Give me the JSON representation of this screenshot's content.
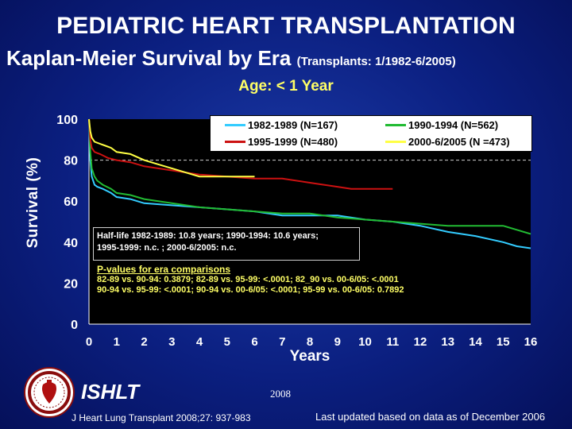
{
  "header": {
    "title_line1": "PEDIATRIC HEART TRANSPLANTATION",
    "title_line2": "Kaplan-Meier Survival by Era",
    "title_line2_small": "(Transplants: 1/1982-6/2005)",
    "subtitle": "Age: < 1 Year"
  },
  "colors": {
    "background": "#0b1f80",
    "plot_bg": "#000000",
    "series_1982_1989": "#33ccff",
    "series_1990_1994": "#22bb33",
    "series_1995_1999": "#cc1111",
    "series_2000_2005": "#ffff44",
    "pvalue_text": "#ffff66"
  },
  "chart_data": {
    "type": "line",
    "xlabel": "Years",
    "ylabel": "Survival (%)",
    "xlim": [
      0,
      16
    ],
    "ylim": [
      0,
      100
    ],
    "xticks": [
      "0",
      "1",
      "2",
      "3",
      "4",
      "5",
      "6",
      "7",
      "8",
      "9",
      "10",
      "11",
      "12",
      "13",
      "14",
      "15",
      "16"
    ],
    "yticks": [
      "0",
      "20",
      "40",
      "60",
      "80",
      "100"
    ],
    "reference_line": 80,
    "legend_position": "top-right",
    "series": [
      {
        "name": "1982-1989 (N=167)",
        "color": "#33ccff",
        "x": [
          0,
          0.05,
          0.1,
          0.2,
          0.3,
          0.5,
          0.8,
          1,
          1.5,
          2,
          3,
          4,
          5,
          6,
          7,
          8,
          9,
          10,
          11,
          12,
          13,
          14,
          15,
          15.5,
          16
        ],
        "y": [
          100,
          80,
          72,
          68,
          67,
          66,
          64,
          62,
          61,
          59,
          58,
          57,
          56,
          55,
          53,
          53,
          53,
          51,
          50,
          48,
          45,
          43,
          40,
          38,
          37
        ]
      },
      {
        "name": "1990-1994 (N=562)",
        "color": "#22bb33",
        "x": [
          0,
          0.05,
          0.1,
          0.2,
          0.3,
          0.5,
          0.8,
          1,
          1.5,
          2,
          3,
          4,
          5,
          6,
          7,
          8,
          9,
          10,
          11,
          12,
          13,
          14,
          15,
          15.5,
          16
        ],
        "y": [
          100,
          84,
          76,
          72,
          70,
          68,
          66,
          64,
          63,
          61,
          59,
          57,
          56,
          55,
          54,
          54,
          52,
          51,
          50,
          49,
          48,
          48,
          48,
          46,
          44
        ]
      },
      {
        "name": "1995-1999 (N=480)",
        "color": "#cc1111",
        "x": [
          0,
          0.05,
          0.1,
          0.2,
          0.4,
          0.7,
          1,
          1.5,
          2,
          3,
          4,
          5,
          6,
          7,
          8,
          9,
          9.5,
          10,
          10.5,
          11
        ],
        "y": [
          100,
          90,
          86,
          84,
          83,
          81,
          80,
          79,
          77,
          75,
          73,
          72,
          71,
          71,
          69,
          67,
          66,
          66,
          66,
          66
        ]
      },
      {
        "name": "2000-6/2005 (N =473)",
        "color": "#ffff44",
        "x": [
          0,
          0.05,
          0.1,
          0.2,
          0.4,
          0.6,
          0.8,
          1,
          1.5,
          2,
          2.5,
          3,
          3.5,
          4,
          5,
          6
        ],
        "y": [
          100,
          94,
          91,
          89,
          88,
          87,
          86,
          84,
          83,
          80,
          78,
          76,
          74,
          72,
          72,
          72
        ]
      }
    ]
  },
  "annotations": {
    "halflife_line1": "Half-life 1982-1989: 10.8 years; 1990-1994: 10.6 years;",
    "halflife_line2": "1995-1999: n.c. ; 2000-6/2005: n.c.",
    "pvalue_heading": "P-values for era comparisons",
    "pvalue_line1": "82-89 vs. 90-94: 0.3879; 82-89 vs. 95-99: <.0001; 82_90 vs. 00-6/05: <.0001",
    "pvalue_line2": "90-94 vs. 95-99: <.0001; 90-94 vs. 00-6/05: <.0001; 95-99 vs. 00-6/05: 0.7892"
  },
  "footer": {
    "org": "ISHLT",
    "year": "2008",
    "citation": "J Heart Lung Transplant 2008;27: 937-983",
    "updated": "Last updated based on data as of December 2006",
    "logo_icon": "ishlt-logo-icon"
  }
}
